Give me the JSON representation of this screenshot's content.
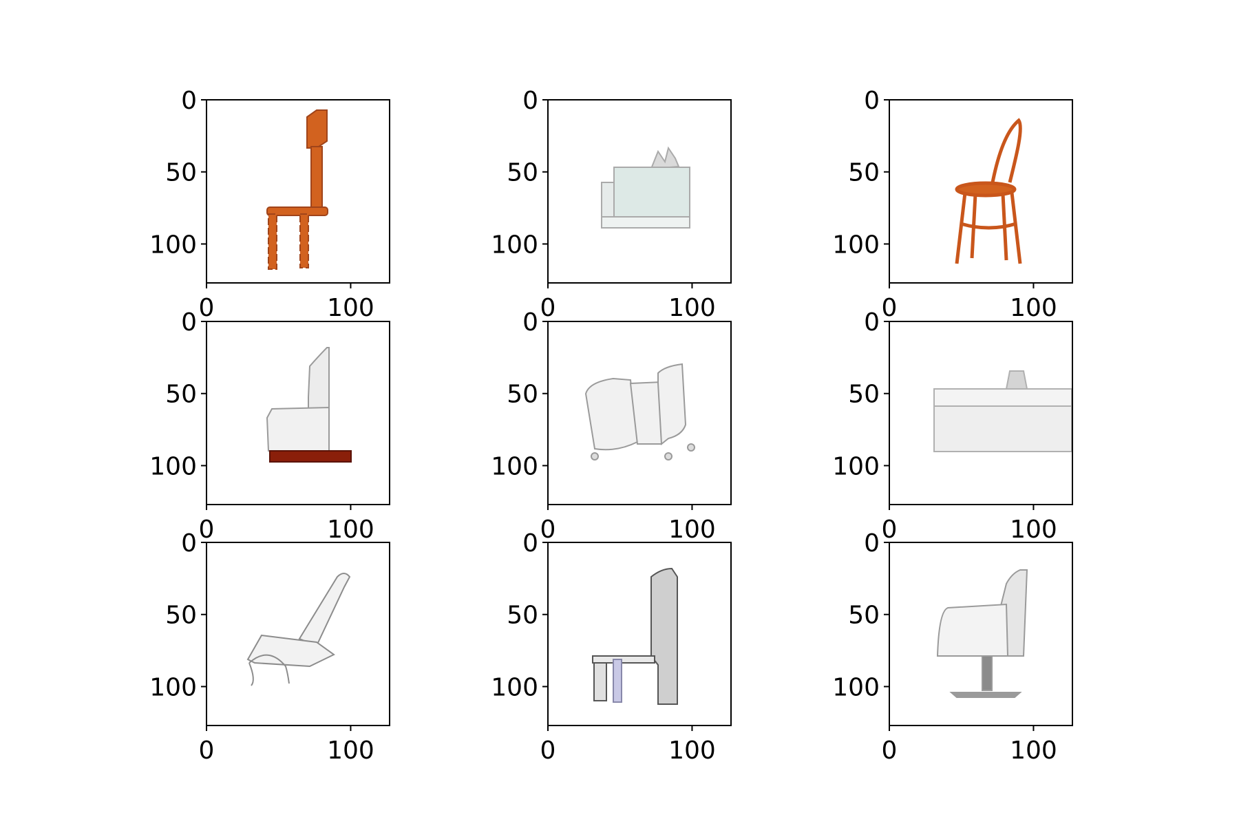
{
  "figure": {
    "axis_ticks": {
      "x": [
        {
          "value": 0,
          "label": "0"
        },
        {
          "value": 100,
          "label": "100"
        }
      ],
      "y": [
        {
          "value": 0,
          "label": "0"
        },
        {
          "value": 50,
          "label": "50"
        },
        {
          "value": 100,
          "label": "100"
        }
      ]
    },
    "image_extent": [
      0,
      127
    ],
    "panels": [
      {
        "id": "r1c1",
        "subject": "tall orange wooden chair with turned legs"
      },
      {
        "id": "r1c2",
        "subject": "light grey-green sofa with cushions"
      },
      {
        "id": "r1c3",
        "subject": "orange bentwood chair"
      },
      {
        "id": "r1c4",
        "subject": "white armchair on dark red base"
      },
      {
        "id": "r1c5",
        "subject": "white sectional sofa on casters"
      },
      {
        "id": "r1c6",
        "subject": "white bench sofa with low back"
      },
      {
        "id": "r1c7",
        "subject": "white park bench with curved legs"
      },
      {
        "id": "r1c8",
        "subject": "speckled grey tall-back chair"
      },
      {
        "id": "r1c9",
        "subject": "white swivel armchair on pedestal"
      }
    ],
    "colors": {
      "frame": "#000000",
      "orange_wood": "#d2621f",
      "dark_red": "#8a1f0a",
      "sofa_green": "#dde9e6",
      "white_gray": "#f2f2f2",
      "outline_gray": "#9a9a9a"
    }
  }
}
